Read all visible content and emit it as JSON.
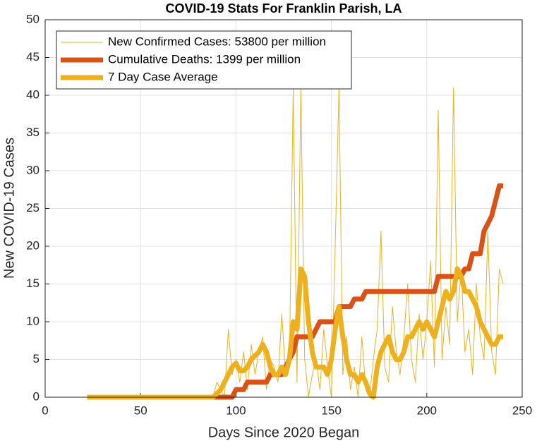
{
  "chart_data": {
    "type": "line",
    "title": "COVID-19 Stats For Franklin Parish, LA",
    "x_label": "Days Since 2020 Began",
    "y_label": "New COVID-19 Cases",
    "xlim": [
      0,
      250
    ],
    "ylim": [
      0,
      50
    ],
    "xticks": [
      0,
      50,
      100,
      150,
      200,
      250
    ],
    "yticks": [
      0,
      5,
      10,
      15,
      20,
      25,
      30,
      35,
      40,
      45,
      50
    ],
    "grid": true,
    "legend_position": "upper left",
    "x": [
      22,
      24,
      26,
      28,
      30,
      32,
      34,
      36,
      38,
      40,
      42,
      44,
      46,
      48,
      50,
      52,
      54,
      56,
      58,
      60,
      62,
      64,
      66,
      68,
      70,
      72,
      74,
      76,
      78,
      80,
      82,
      84,
      86,
      88,
      90,
      92,
      94,
      96,
      98,
      100,
      102,
      104,
      106,
      108,
      110,
      112,
      114,
      116,
      118,
      120,
      122,
      124,
      126,
      128,
      130,
      132,
      134,
      136,
      138,
      140,
      142,
      144,
      146,
      148,
      150,
      152,
      154,
      156,
      158,
      160,
      162,
      164,
      166,
      168,
      170,
      172,
      174,
      176,
      178,
      180,
      182,
      184,
      186,
      188,
      190,
      192,
      194,
      196,
      198,
      200,
      202,
      204,
      206,
      208,
      210,
      212,
      214,
      216,
      218,
      220,
      222,
      224,
      226,
      228,
      230,
      232,
      234,
      236,
      238,
      240
    ],
    "series": [
      {
        "name": "New Confirmed Cases: 53800 per million",
        "color": "#EDB120",
        "width": 1,
        "values": [
          0,
          0,
          0,
          0,
          0,
          0,
          0,
          0,
          0,
          0,
          0,
          0,
          0,
          0,
          0,
          0,
          0,
          0,
          0,
          0,
          0,
          0,
          0,
          0,
          0,
          0,
          0,
          0,
          0,
          0,
          0,
          0,
          0,
          0,
          2,
          1,
          0,
          9,
          3,
          5,
          2,
          6,
          1,
          7,
          3,
          6,
          8,
          1,
          5,
          4,
          2,
          11,
          3,
          4,
          41,
          2,
          41,
          5,
          0,
          3,
          5,
          1,
          9,
          4,
          0,
          20,
          41,
          3,
          8,
          1,
          4,
          0,
          8,
          1,
          0,
          5,
          9,
          22,
          4,
          2,
          12,
          6,
          3,
          8,
          15,
          5,
          2,
          11,
          5,
          10,
          18,
          4,
          38,
          5,
          12,
          7,
          41,
          10,
          17,
          6,
          9,
          3,
          15,
          8,
          5,
          22,
          6,
          3,
          17,
          15
        ]
      },
      {
        "name": "Cumulative Deaths: 1399 per million",
        "color": "#D95319",
        "width": 7,
        "values": [
          0,
          0,
          0,
          0,
          0,
          0,
          0,
          0,
          0,
          0,
          0,
          0,
          0,
          0,
          0,
          0,
          0,
          0,
          0,
          0,
          0,
          0,
          0,
          0,
          0,
          0,
          0,
          0,
          0,
          0,
          0,
          0,
          0,
          0,
          0,
          0,
          0,
          0,
          0,
          1,
          1,
          1,
          2,
          2,
          2,
          2,
          2,
          2,
          3,
          3,
          3,
          3,
          4,
          5,
          6,
          8,
          8,
          8,
          8,
          8,
          9,
          10,
          10,
          10,
          10,
          10,
          12,
          12,
          12,
          12,
          13,
          13,
          13,
          14,
          14,
          14,
          14,
          14,
          14,
          14,
          14,
          14,
          14,
          14,
          14,
          14,
          14,
          14,
          14,
          14,
          14,
          14,
          16,
          16,
          16,
          16,
          16,
          16,
          16,
          17,
          17,
          19,
          19,
          19,
          22,
          23,
          24,
          26,
          28,
          28
        ]
      },
      {
        "name": "7 Day Case Average",
        "color": "#EDB120",
        "width": 7,
        "values": [
          0,
          0,
          0,
          0,
          0,
          0,
          0,
          0,
          0,
          0,
          0,
          0,
          0,
          0,
          0,
          0,
          0,
          0,
          0,
          0,
          0,
          0,
          0,
          0,
          0,
          0,
          0,
          0,
          0,
          0,
          0,
          0,
          0,
          0,
          0.5,
          1,
          2,
          3,
          4,
          4.5,
          3.5,
          3.5,
          4,
          5,
          5.5,
          6,
          7,
          6,
          4,
          3,
          3,
          4,
          3,
          5,
          10,
          9,
          17,
          16,
          10,
          6,
          4,
          4,
          4,
          3,
          5,
          9,
          12,
          8,
          5,
          3,
          3,
          2,
          3,
          2,
          0.5,
          0,
          4,
          6,
          7,
          8,
          6,
          5,
          5,
          6,
          8,
          8,
          9,
          10,
          9,
          10,
          9,
          8,
          10,
          12,
          14,
          13,
          14,
          17,
          16,
          14,
          14,
          13,
          12,
          10,
          9,
          8,
          7,
          7,
          8,
          8
        ]
      }
    ]
  }
}
